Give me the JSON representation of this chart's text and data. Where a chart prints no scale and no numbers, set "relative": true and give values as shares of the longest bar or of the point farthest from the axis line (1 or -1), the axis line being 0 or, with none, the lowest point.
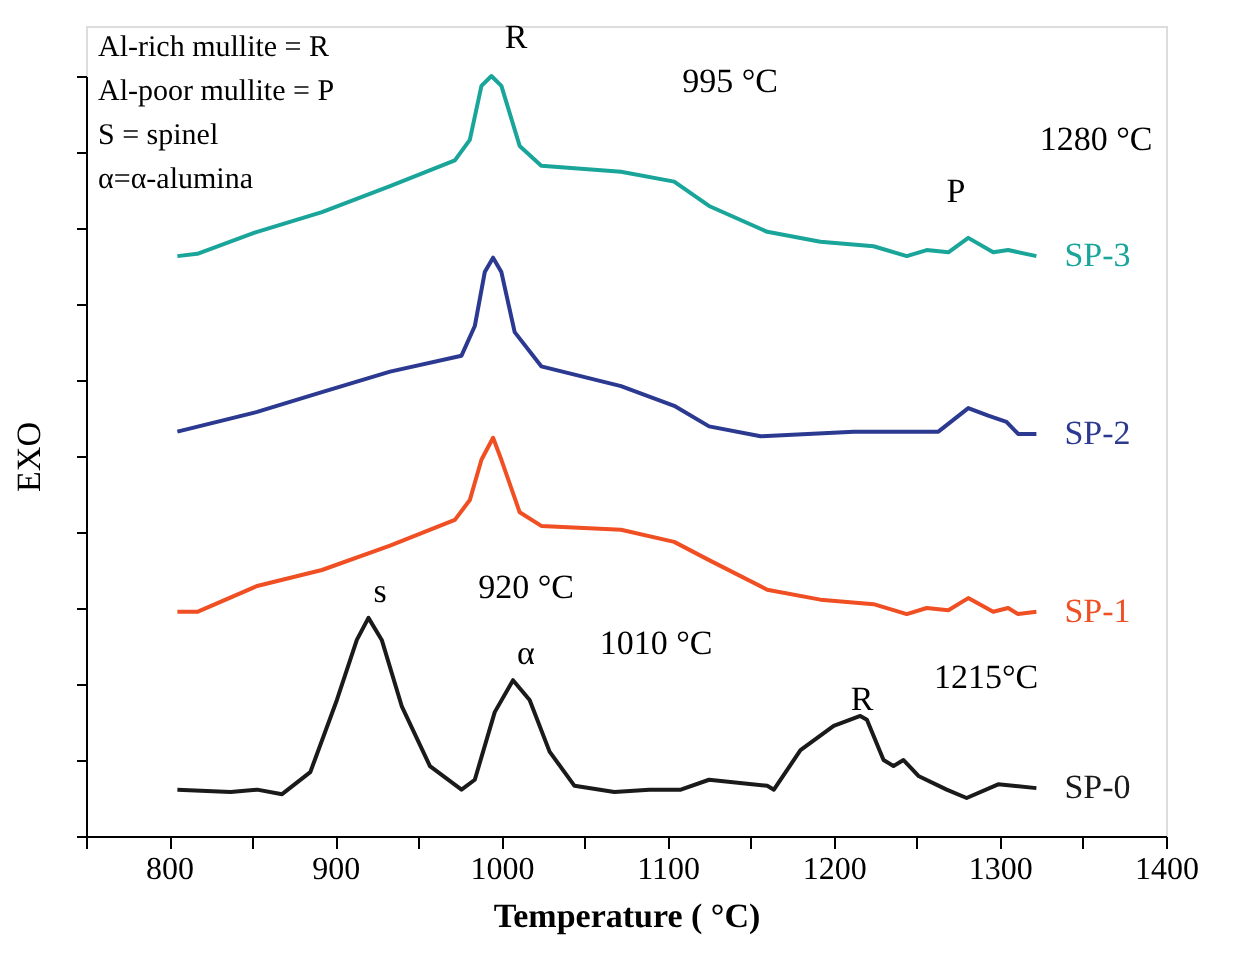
{
  "chart_data": {
    "type": "line",
    "relative": true,
    "xlabel": "Temperature ( °C)",
    "ylabel": "EXO",
    "xlim": [
      750,
      1400
    ],
    "xticks": [
      {
        "value": 750,
        "label": null
      },
      800,
      {
        "value": 850,
        "label": null
      },
      900,
      {
        "value": 950,
        "label": null
      },
      1000,
      {
        "value": 1050,
        "label": null
      },
      1100,
      {
        "value": 1150,
        "label": null
      },
      1200,
      {
        "value": 1250,
        "label": null
      },
      1300,
      {
        "value": 1350,
        "label": null
      },
      1400
    ],
    "grid": false,
    "legend": false,
    "line_style": "solid",
    "series": [
      {
        "name": "SP-3",
        "color": "#1aa59a",
        "x": [
          805,
          817,
          853,
          892,
          933,
          972,
          981,
          988,
          994,
          1000,
          1011,
          1024,
          1072,
          1104,
          1125,
          1160,
          1192,
          1224,
          1244,
          1256,
          1269,
          1281,
          1296,
          1305,
          1322
        ],
        "values": [
          0.763,
          0.766,
          0.795,
          0.821,
          0.855,
          0.889,
          0.916,
          0.987,
          1.0,
          0.987,
          0.908,
          0.882,
          0.874,
          0.861,
          0.829,
          0.795,
          0.782,
          0.776,
          0.763,
          0.771,
          0.768,
          0.787,
          0.768,
          0.771,
          0.763
        ]
      },
      {
        "name": "SP-2",
        "color": "#2b3990",
        "x": [
          805,
          853,
          892,
          933,
          976,
          984,
          990,
          995,
          1000,
          1008,
          1024,
          1072,
          1104,
          1125,
          1156,
          1212,
          1263,
          1281,
          1293,
          1304,
          1311,
          1322
        ],
        "values": [
          0.532,
          0.558,
          0.584,
          0.611,
          0.632,
          0.671,
          0.742,
          0.761,
          0.742,
          0.663,
          0.618,
          0.592,
          0.566,
          0.539,
          0.526,
          0.532,
          0.532,
          0.563,
          0.553,
          0.545,
          0.529,
          0.529
        ]
      },
      {
        "name": "SP-1",
        "color": "#f04e23",
        "x": [
          805,
          817,
          853,
          892,
          933,
          972,
          981,
          988,
          995,
          1000,
          1011,
          1024,
          1072,
          1104,
          1125,
          1160,
          1192,
          1224,
          1244,
          1256,
          1269,
          1281,
          1296,
          1305,
          1311,
          1322
        ],
        "values": [
          0.295,
          0.295,
          0.329,
          0.35,
          0.382,
          0.416,
          0.442,
          0.495,
          0.524,
          0.495,
          0.426,
          0.408,
          0.403,
          0.387,
          0.363,
          0.324,
          0.311,
          0.305,
          0.292,
          0.3,
          0.297,
          0.313,
          0.295,
          0.3,
          0.292,
          0.295
        ]
      },
      {
        "name": "SP-0",
        "color": "#1a1a1a",
        "x": [
          805,
          837,
          853,
          868,
          885,
          901,
          913,
          920,
          928,
          940,
          957,
          976,
          984,
          996,
          1007,
          1017,
          1029,
          1044,
          1068,
          1089,
          1108,
          1125,
          1160,
          1164,
          1180,
          1200,
          1216,
          1220,
          1230,
          1236,
          1242,
          1251,
          1268,
          1280,
          1299,
          1322
        ],
        "values": [
          0.061,
          0.058,
          0.061,
          0.055,
          0.084,
          0.179,
          0.258,
          0.287,
          0.258,
          0.171,
          0.092,
          0.061,
          0.074,
          0.163,
          0.205,
          0.179,
          0.111,
          0.066,
          0.058,
          0.061,
          0.061,
          0.074,
          0.066,
          0.061,
          0.113,
          0.145,
          0.158,
          0.153,
          0.1,
          0.092,
          0.1,
          0.079,
          0.061,
          0.05,
          0.068,
          0.063
        ]
      }
    ],
    "annotations": [
      "Al-rich  mullite = R",
      "Al-poor mullite = P",
      "S = spinel",
      "α=α-alumina",
      "R",
      "995 °C",
      "P",
      "1280 °C",
      "s",
      "920 °C",
      "α",
      "1010 °C",
      "R",
      "1215°C"
    ]
  }
}
